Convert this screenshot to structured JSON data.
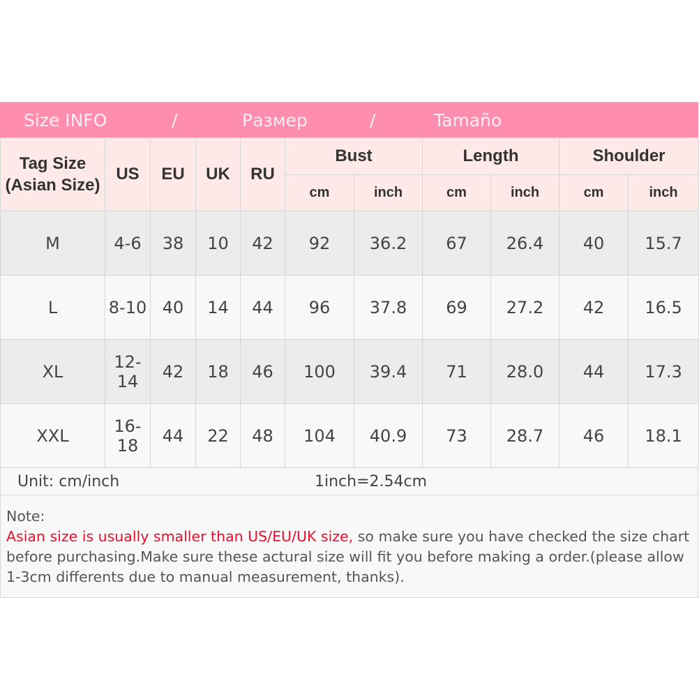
{
  "title": {
    "en": "Size INFO",
    "sep": "/",
    "ru": "Размер",
    "es": "Tamaño"
  },
  "headers": {
    "tag_size": "Tag Size",
    "tag_size_sub": "(Asian Size)",
    "us": "US",
    "eu": "EU",
    "uk": "UK",
    "ru": "RU",
    "bust": "Bust",
    "length": "Length",
    "shoulder": "Shoulder",
    "cm": "cm",
    "inch": "inch"
  },
  "rows": [
    {
      "tag": "M",
      "us": "4-6",
      "eu": "38",
      "uk": "10",
      "ru": "42",
      "bust_cm": "92",
      "bust_in": "36.2",
      "len_cm": "67",
      "len_in": "26.4",
      "sh_cm": "40",
      "sh_in": "15.7"
    },
    {
      "tag": "L",
      "us": "8-10",
      "eu": "40",
      "uk": "14",
      "ru": "44",
      "bust_cm": "96",
      "bust_in": "37.8",
      "len_cm": "69",
      "len_in": "27.2",
      "sh_cm": "42",
      "sh_in": "16.5"
    },
    {
      "tag": "XL",
      "us": "12-14",
      "eu": "42",
      "uk": "18",
      "ru": "46",
      "bust_cm": "100",
      "bust_in": "39.4",
      "len_cm": "71",
      "len_in": "28.0",
      "sh_cm": "44",
      "sh_in": "17.3"
    },
    {
      "tag": "XXL",
      "us": "16-18",
      "eu": "44",
      "uk": "22",
      "ru": "48",
      "bust_cm": "104",
      "bust_in": "40.9",
      "len_cm": "73",
      "len_in": "28.7",
      "sh_cm": "46",
      "sh_in": "18.1"
    }
  ],
  "unit": {
    "label": "Unit: cm/inch",
    "conversion": "1inch=2.54cm"
  },
  "note": {
    "label": "Note:",
    "warning": "Asian size is usually smaller than US/EU/UK size,",
    "text": " so make sure you have checked the size chart before purchasing.Make sure these actural size will fit you before making a order.(please allow 1-3cm differents due to manual measurement, thanks)."
  },
  "colors": {
    "title_bg": "#fe8db0",
    "header_bg": "#fde9e7",
    "warning": "#e8112d"
  }
}
